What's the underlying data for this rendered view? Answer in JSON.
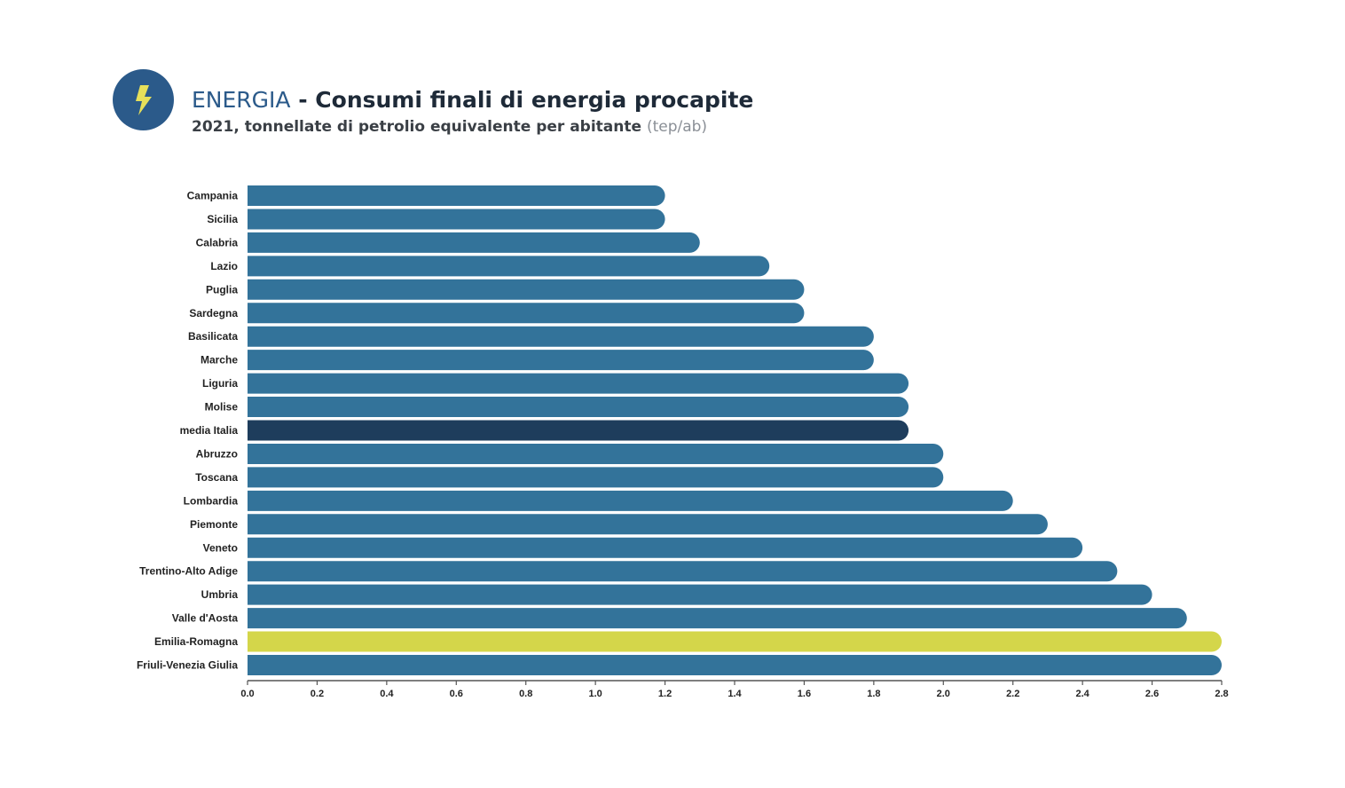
{
  "header": {
    "icon": "lightning-bolt-icon",
    "title_accent": "ENERGIA",
    "title_rest": " - Consumi finali di energia procapite",
    "subtitle_main": "2021, tonnellate di petrolio equivalente per abitante ",
    "subtitle_unit": "(tep/ab)"
  },
  "colors": {
    "bar": "#33739a",
    "highlight_average": "#1e3d5c",
    "highlight_region": "#d4d64a",
    "badge": "#2b5a8a",
    "bolt": "#e7e05a"
  },
  "chart_data": {
    "type": "bar",
    "orientation": "horizontal",
    "title": "ENERGIA - Consumi finali di energia procapite",
    "subtitle": "2021, tonnellate di petrolio equivalente per abitante (tep/ab)",
    "xlabel": "",
    "ylabel": "",
    "xlim": [
      0,
      2.8
    ],
    "x_ticks": [
      "0.0",
      "0.2",
      "0.4",
      "0.6",
      "0.8",
      "1.0",
      "1.2",
      "1.4",
      "1.6",
      "1.8",
      "2.0",
      "2.2",
      "2.4",
      "2.6",
      "2.8"
    ],
    "grid": false,
    "categories": [
      "Campania",
      "Sicilia",
      "Calabria",
      "Lazio",
      "Puglia",
      "Sardegna",
      "Basilicata",
      "Marche",
      "Liguria",
      "Molise",
      "media Italia",
      "Abruzzo",
      "Toscana",
      "Lombardia",
      "Piemonte",
      "Veneto",
      "Trentino-Alto Adige",
      "Umbria",
      "Valle d'Aosta",
      "Emilia-Romagna",
      "Friuli-Venezia Giulia"
    ],
    "values": [
      1.2,
      1.2,
      1.3,
      1.5,
      1.6,
      1.6,
      1.8,
      1.8,
      1.9,
      1.9,
      1.9,
      2.0,
      2.0,
      2.2,
      2.3,
      2.4,
      2.5,
      2.6,
      2.7,
      2.8,
      2.8
    ],
    "highlight": {
      "media Italia": "average",
      "Emilia-Romagna": "region"
    }
  }
}
